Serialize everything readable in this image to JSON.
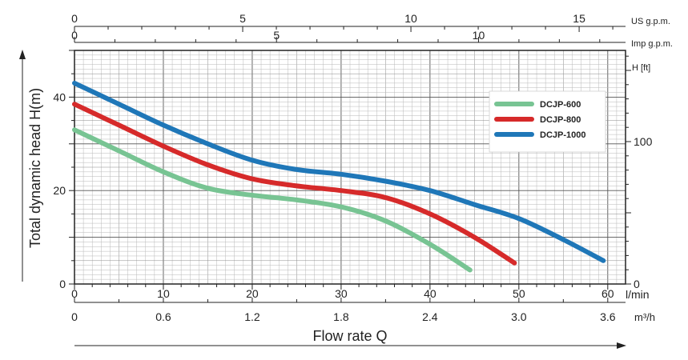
{
  "chart_data": {
    "type": "line",
    "ylabel": "Total dynamic head H(m)",
    "xlabel": "Flow rate Q",
    "xlim": [
      0,
      62
    ],
    "ylim": [
      0,
      50
    ],
    "x_unit": "l/min",
    "x_ticks": [
      0,
      10,
      20,
      30,
      40,
      50,
      60
    ],
    "y_ticks": [
      0,
      20,
      40
    ],
    "grid": true,
    "legend_position": "top-right",
    "secondary_x_m3h": {
      "unit": "m³/h",
      "ticks": [
        {
          "value": "0",
          "lpm": 0
        },
        {
          "value": "0.6",
          "lpm": 10
        },
        {
          "value": "1.2",
          "lpm": 20
        },
        {
          "value": "1.8",
          "lpm": 30
        },
        {
          "value": "2.4",
          "lpm": 40
        },
        {
          "value": "3.0",
          "lpm": 50
        },
        {
          "value": "3.6",
          "lpm": 60
        }
      ]
    },
    "top_x_us": {
      "unit": "US g.p.m.",
      "ticks": [
        {
          "value": "0",
          "lpm": 0
        },
        {
          "value": "5",
          "lpm": 18.93
        },
        {
          "value": "10",
          "lpm": 37.85
        },
        {
          "value": "15",
          "lpm": 56.78
        }
      ]
    },
    "top_x_imp": {
      "unit": "Imp g.p.m.",
      "ticks": [
        {
          "value": "0",
          "lpm": 0
        },
        {
          "value": "5",
          "lpm": 22.73
        },
        {
          "value": "10",
          "lpm": 45.46
        }
      ]
    },
    "right_y_ft": {
      "unit": "H [ft]",
      "ticks": [
        {
          "value": "0",
          "m": 0
        },
        {
          "value": "100",
          "m": 30.48
        }
      ]
    },
    "series": [
      {
        "name": "DCJP-600",
        "color": "#78c493",
        "x": [
          0,
          5,
          10,
          15,
          20,
          25,
          30,
          35,
          40,
          44.5
        ],
        "y": [
          33,
          28.5,
          24,
          20.5,
          19,
          18,
          16.5,
          13.5,
          8.5,
          3
        ]
      },
      {
        "name": "DCJP-800",
        "color": "#d62a2a",
        "x": [
          0,
          5,
          10,
          15,
          20,
          25,
          30,
          35,
          40,
          45,
          49.5
        ],
        "y": [
          38.5,
          34,
          29.5,
          25.5,
          22.5,
          21,
          20,
          18.5,
          15,
          10,
          4.5
        ]
      },
      {
        "name": "DCJP-1000",
        "color": "#1f77b8",
        "x": [
          0,
          5,
          10,
          15,
          20,
          25,
          30,
          35,
          40,
          45,
          50,
          55,
          59.5
        ],
        "y": [
          43,
          38.5,
          34,
          30,
          26.5,
          24.5,
          23.5,
          22,
          20,
          17,
          14,
          9.5,
          5
        ]
      }
    ]
  }
}
